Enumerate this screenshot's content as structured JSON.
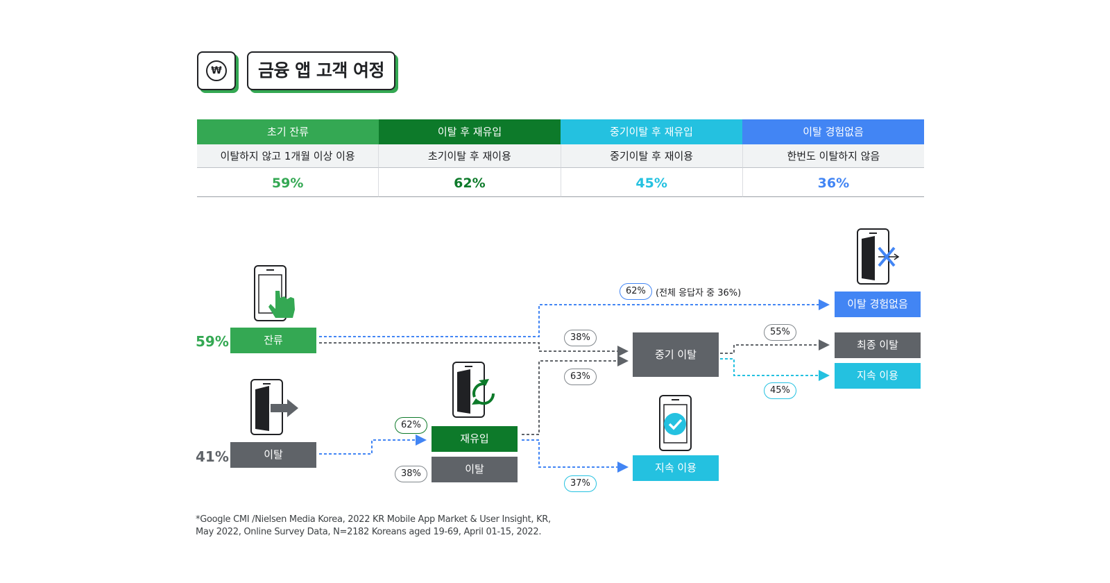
{
  "header": {
    "icon_symbol": "₩",
    "title": "금융 앱 고객 여정"
  },
  "table": {
    "columns": [
      {
        "title": "초기 잔류",
        "description": "이탈하지 않고 1개월 이상 이용",
        "value": "59%",
        "color": "#34a853"
      },
      {
        "title": "이탈 후 재유입",
        "description": "초기이탈 후 재이용",
        "value": "62%",
        "color": "#0d7a2a"
      },
      {
        "title": "중기이탈 후 재유입",
        "description": "중기이탈 후 재이용",
        "value": "45%",
        "color": "#24c1e0"
      },
      {
        "title": "이탈 경험없음",
        "description": "한번도 이탈하지 않음",
        "value": "36%",
        "color": "#4285f4"
      }
    ]
  },
  "flow": {
    "retain": {
      "pct": "59%",
      "label": "잔류"
    },
    "churn": {
      "pct": "41%",
      "label": "이탈"
    },
    "reentry": {
      "label": "재유입",
      "pct": "62%"
    },
    "churn2": {
      "label": "이탈",
      "pct": "38%"
    },
    "no_churn_pct": "62%",
    "no_churn_note": "(전체 응답자 중 36%)",
    "to_mid_churn_pct": "38%",
    "reentry_to_mid_pct": "63%",
    "reentry_to_continue_pct": "37%",
    "mid_churn": {
      "label": "중기 이탈"
    },
    "final_churn_pct": "55%",
    "continue_after_mid_pct": "45%",
    "outcomes": {
      "never_churned": "이탈 경험없음",
      "final_churn": "최종 이탈",
      "continue_mid": "지속 이용",
      "continue_reentry": "지속 이용"
    }
  },
  "colors": {
    "green": "#34a853",
    "dark_green": "#0d7a2a",
    "cyan": "#24c1e0",
    "blue": "#4285f4",
    "gray": "#5f6368"
  },
  "footnote": {
    "line1": "*Google CMI /Nielsen Media Korea, 2022 KR Mobile App Market & User Insight, KR,",
    "line2": "May 2022, Online Survey Data, N=2182 Koreans aged 19-69, April 01-15, 2022."
  }
}
